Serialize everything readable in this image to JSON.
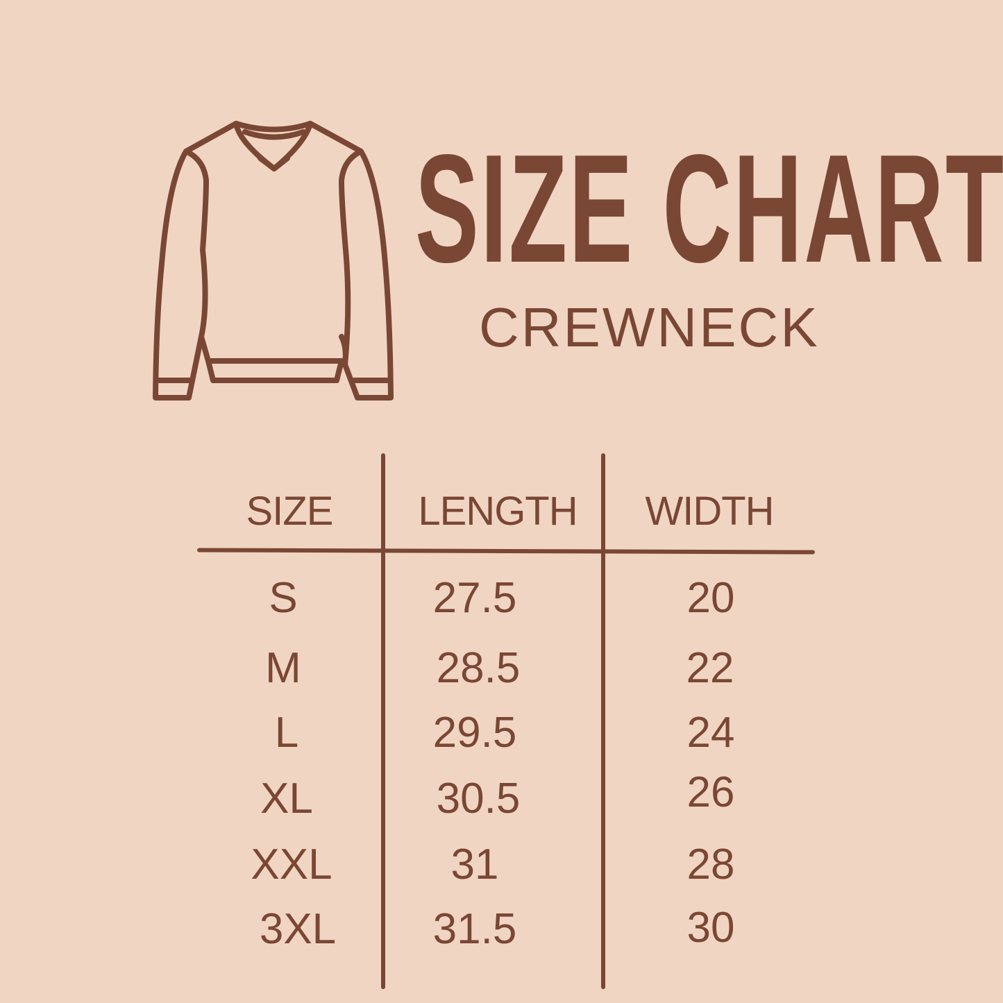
{
  "header": {
    "title": "SIZE CHART",
    "subtitle": "CREWNECK",
    "icon": "crewneck-sweater-icon"
  },
  "colors": {
    "background": "#f0d5c3",
    "ink": "#7a4734"
  },
  "table": {
    "columns": [
      "SIZE",
      "LENGTH",
      "WIDTH"
    ],
    "rows": [
      {
        "size": "S",
        "length": "27.5",
        "width": "20"
      },
      {
        "size": "M",
        "length": "28.5",
        "width": "22"
      },
      {
        "size": "L",
        "length": "29.5",
        "width": "24"
      },
      {
        "size": "XL",
        "length": "30.5",
        "width": "26"
      },
      {
        "size": "XXL",
        "length": "31",
        "width": "28"
      },
      {
        "size": "3XL",
        "length": "31.5",
        "width": "30"
      }
    ]
  }
}
